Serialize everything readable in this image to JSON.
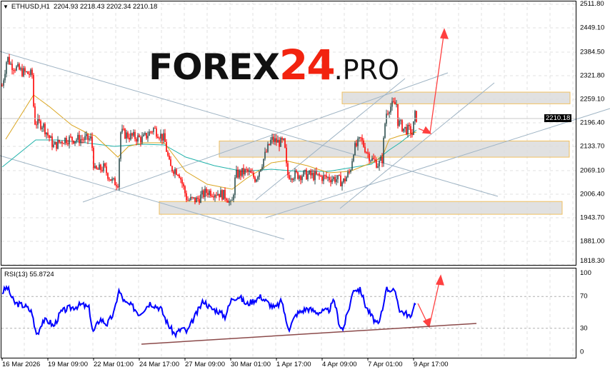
{
  "header": {
    "symbol": "ETHUSD,H1",
    "ohlc": "2204.93 2218.43 2202.34 2210.18"
  },
  "logo": {
    "part1": "FOREX",
    "part2": "24",
    "part3": ".PRO"
  },
  "rsi": {
    "label": "RSI(13) 55.8724",
    "ticks": [
      "100",
      "70",
      "30",
      "0"
    ],
    "levels": [
      70,
      30
    ]
  },
  "price_axis": {
    "ticks": [
      "2511.80",
      "2449.10",
      "2384.50",
      "2321.80",
      "2259.10",
      "2196.40",
      "2133.70",
      "2069.10",
      "2006.40",
      "1943.70",
      "1881.00",
      "1818.30"
    ],
    "current": "2210.18"
  },
  "time_axis": {
    "ticks": [
      "16 Mar 2026",
      "19 Mar 09:00",
      "22 Mar 01:00",
      "24 Mar 17:00",
      "27 Mar 09:00",
      "30 Mar 01:00",
      "1 Apr 17:00",
      "4 Apr 09:00",
      "7 Apr 01:00",
      "9 Apr 17:00"
    ]
  },
  "colors": {
    "bull": "#2f4f4f",
    "bear": "#ff0000",
    "ma_fast": "#daa520",
    "ma_slow": "#20b2aa",
    "rsi": "#0000ff",
    "trend": "#9fb4c4",
    "arrow": "#ff4040",
    "zone_border": "#f0c060",
    "zone_fill": "#dcdcdc"
  },
  "chart_data": {
    "type": "candlestick",
    "symbol": "ETHUSD",
    "timeframe": "H1",
    "ylim": [
      1818.3,
      2511.8
    ],
    "grid": true,
    "close_path": [
      2295,
      2371,
      2352,
      2333,
      2324,
      2200,
      2191,
      2134,
      2153,
      2153,
      2153,
      2067,
      2077,
      2038,
      2038,
      2172,
      2162,
      2153,
      2181,
      2153,
      2077,
      2067,
      1991,
      1991,
      2014,
      2010,
      2000,
      1972,
      2058,
      2067,
      2048,
      2105,
      2152,
      2143,
      2143,
      2058,
      2058,
      2058,
      2052,
      2048,
      2038,
      2067,
      2124,
      2152,
      2114,
      2100,
      2086,
      2100,
      2219,
      2238,
      2247,
      2200,
      2181,
      2175,
      2162,
      2219,
      2210
    ],
    "support_resistance_zones": [
      [
        2247,
        2278
      ],
      [
        2105,
        2148
      ],
      [
        1953,
        1987
      ]
    ],
    "rsi_path": [
      75,
      82,
      62,
      58,
      50,
      32,
      22,
      40,
      38,
      32,
      50,
      55,
      57,
      60,
      55,
      24,
      42,
      35,
      50,
      78,
      62,
      58,
      48,
      62,
      55,
      35,
      22,
      30,
      25,
      40,
      65,
      55,
      52,
      45,
      68,
      70,
      60,
      65,
      70,
      62,
      55,
      65,
      40,
      30,
      48,
      55,
      50,
      52,
      65,
      35,
      28,
      60,
      80,
      78,
      58,
      45,
      33,
      60,
      80,
      78,
      70,
      52,
      48,
      42,
      65,
      56
    ]
  }
}
